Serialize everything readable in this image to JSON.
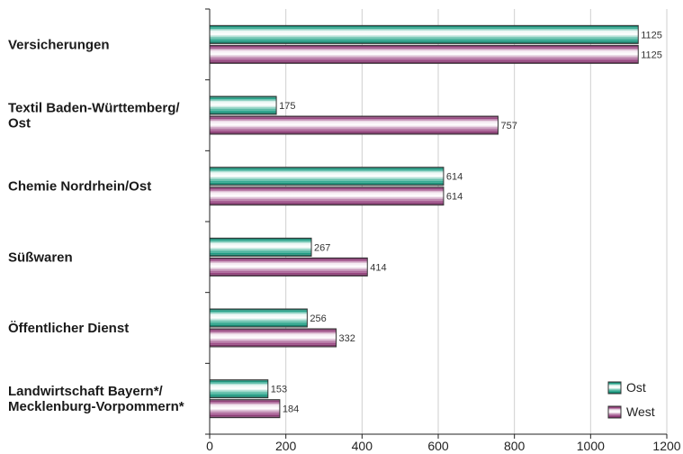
{
  "chart_data": {
    "type": "bar",
    "orientation": "horizontal",
    "categories": [
      [
        "Versicherungen"
      ],
      [
        "Textil Baden-Württemberg/",
        "Ost"
      ],
      [
        "Chemie Nordrhein/Ost"
      ],
      [
        "Süßwaren"
      ],
      [
        "Öffentlicher Dienst"
      ],
      [
        "Landwirtschaft Bayern*/",
        "Mecklenburg-Vorpommern*"
      ]
    ],
    "series": [
      {
        "name": "Ost",
        "values": [
          1125,
          175,
          614,
          267,
          256,
          153
        ],
        "color": "#1a9c82"
      },
      {
        "name": "West",
        "values": [
          1125,
          757,
          614,
          414,
          332,
          184
        ],
        "color": "#96407e"
      }
    ],
    "x_ticks": [
      "0",
      "200",
      "400",
      "600",
      "800",
      "1000",
      "1200"
    ],
    "xlim": [
      0,
      1200
    ],
    "grid": true,
    "legend_position": "bottom-right"
  }
}
